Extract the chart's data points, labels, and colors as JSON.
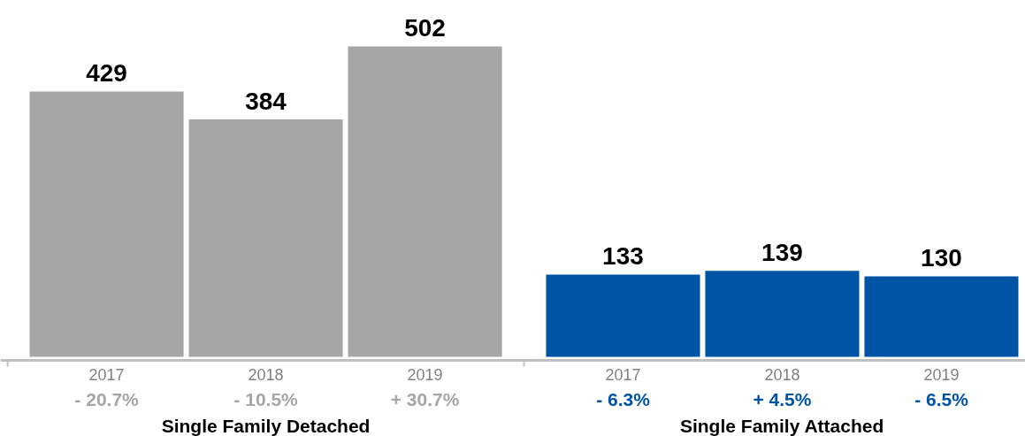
{
  "chart_data": {
    "type": "bar",
    "categories": [
      "2017",
      "2018",
      "2019",
      "2017",
      "2018",
      "2019"
    ],
    "series": [
      {
        "color": "#a6a6a6",
        "values": [
          429,
          384,
          502,
          null,
          null,
          null
        ]
      },
      {
        "color": "#0054a5",
        "values": [
          null,
          null,
          null,
          133,
          139,
          130
        ]
      }
    ],
    "data_labels": true,
    "annotations": [
      "- 20.7%",
      "- 10.5%",
      "+ 30.7%",
      "- 6.3%",
      "+ 4.5%",
      "- 6.5%",
      "Single Family Detached",
      "Single Family Attached"
    ]
  }
}
